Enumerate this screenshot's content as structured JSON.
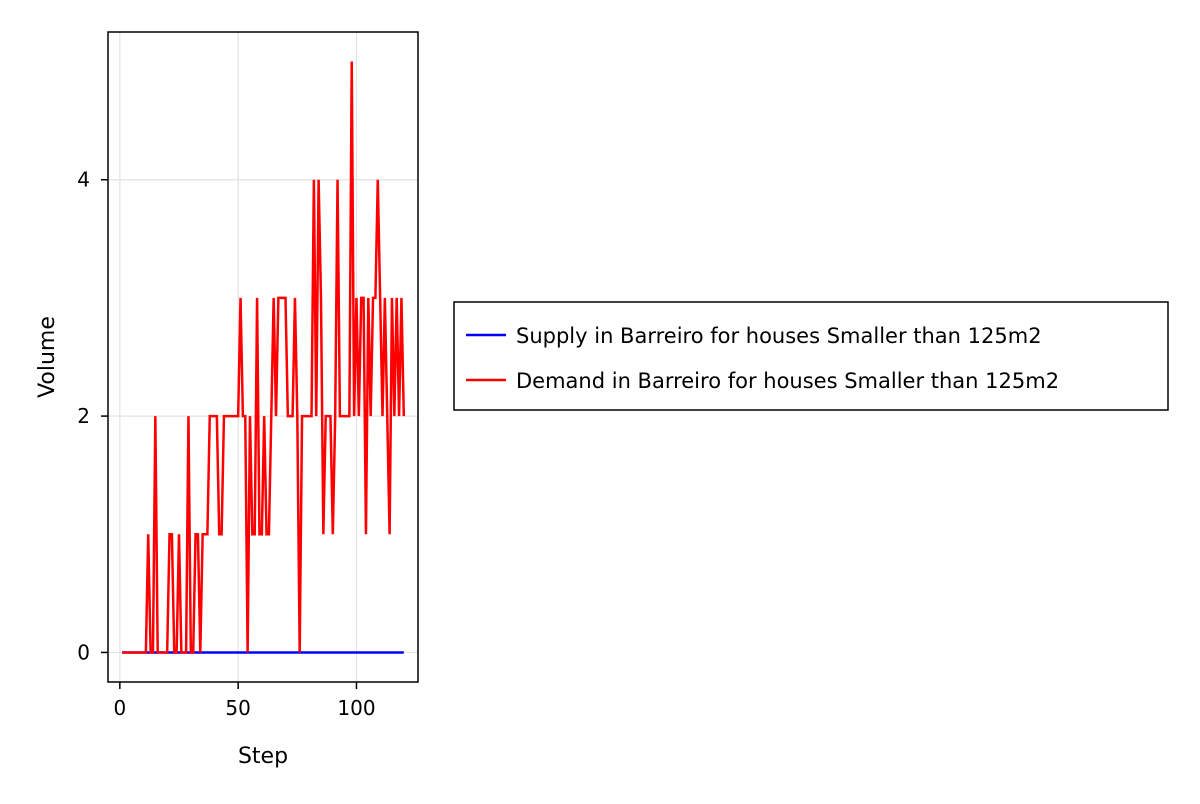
{
  "chart_data": {
    "type": "line",
    "title": "",
    "xlabel": "Step",
    "ylabel": "Volume",
    "xlim": [
      -5,
      126
    ],
    "ylim": [
      -0.25,
      5.25
    ],
    "xticks": [
      0,
      50,
      100
    ],
    "yticks": [
      0,
      2,
      4
    ],
    "grid": true,
    "legend_position": "right",
    "series": [
      {
        "name": "Supply in Barreiro for houses Smaller than 125m2",
        "color": "#0000ff",
        "x": [
          1,
          120
        ],
        "y": [
          0,
          0
        ]
      },
      {
        "name": "Demand in Barreiro for houses Smaller than 125m2",
        "color": "#ff0000",
        "x": [
          1,
          2,
          3,
          4,
          5,
          6,
          7,
          8,
          9,
          10,
          11,
          12,
          13,
          14,
          15,
          16,
          17,
          18,
          19,
          20,
          21,
          22,
          23,
          24,
          25,
          26,
          27,
          28,
          29,
          30,
          31,
          32,
          33,
          34,
          35,
          36,
          37,
          38,
          39,
          40,
          41,
          42,
          43,
          44,
          45,
          46,
          47,
          48,
          49,
          50,
          51,
          52,
          53,
          54,
          55,
          56,
          57,
          58,
          59,
          60,
          61,
          62,
          63,
          64,
          65,
          66,
          67,
          68,
          69,
          70,
          71,
          72,
          73,
          74,
          75,
          76,
          77,
          78,
          79,
          80,
          81,
          82,
          83,
          84,
          85,
          86,
          87,
          88,
          89,
          90,
          91,
          92,
          93,
          94,
          95,
          96,
          97,
          98,
          99,
          100,
          101,
          102,
          103,
          104,
          105,
          106,
          107,
          108,
          109,
          110,
          111,
          112,
          113,
          114,
          115,
          116,
          117,
          118,
          119,
          120
        ],
        "y": [
          0,
          0,
          0,
          0,
          0,
          0,
          0,
          0,
          0,
          0,
          0,
          1,
          0,
          0,
          2,
          0,
          0,
          0,
          0,
          0,
          1,
          1,
          0,
          0,
          1,
          0,
          0,
          0,
          2,
          0,
          0,
          1,
          1,
          0,
          1,
          1,
          1,
          2,
          2,
          2,
          2,
          1,
          1,
          2,
          2,
          2,
          2,
          2,
          2,
          2,
          3,
          2,
          2,
          0,
          2,
          1,
          1,
          3,
          1,
          1,
          2,
          1,
          1,
          2,
          3,
          2,
          3,
          3,
          3,
          3,
          2,
          2,
          2,
          3,
          2,
          0,
          2,
          2,
          2,
          2,
          2,
          4,
          2,
          4,
          3,
          1,
          2,
          2,
          2,
          1,
          2,
          4,
          2,
          2,
          2,
          2,
          2,
          5,
          2,
          3,
          2,
          3,
          3,
          1,
          3,
          2,
          3,
          3,
          4,
          3,
          2,
          3,
          2,
          1,
          3,
          2,
          3,
          2,
          3,
          2
        ]
      }
    ]
  }
}
